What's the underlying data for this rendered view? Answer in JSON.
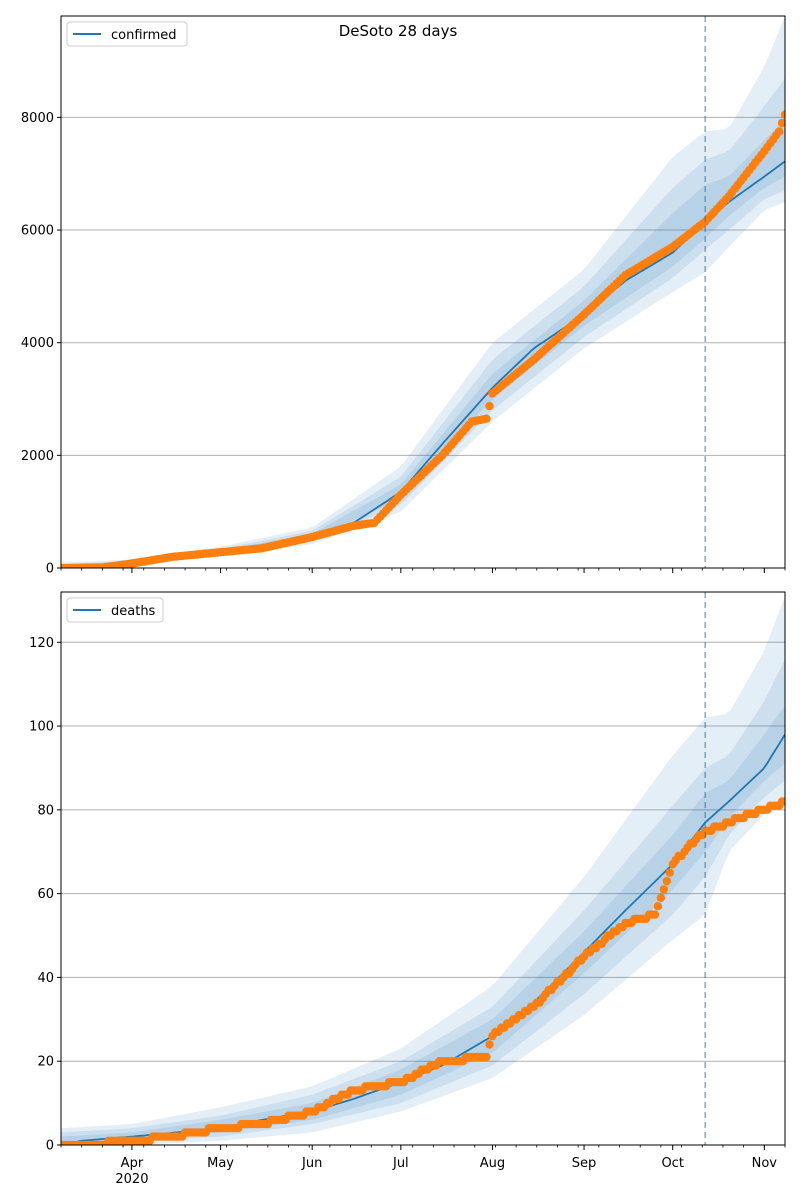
{
  "figure": {
    "title": "DeSoto 28 days"
  },
  "colors": {
    "model_line": "#1f77b4",
    "observed_points": "#ff7f0e",
    "band": "#1f77b4",
    "forecast_start_line": "#1f77b4",
    "grid": "#b0b0b0"
  },
  "chart_data": [
    {
      "type": "line",
      "panel": "top",
      "legend": [
        "confirmed"
      ],
      "legend_position": "upper-left",
      "grid": "y",
      "x_range": [
        "2020-03-08",
        "2020-11-08"
      ],
      "ylim": [
        0,
        9800
      ],
      "yticks": [
        0,
        2000,
        4000,
        6000,
        8000
      ],
      "xtick_labels": [],
      "forecast_start": "2020-10-12",
      "series": [
        {
          "name": "confirmed",
          "kind": "model",
          "points": [
            [
              "2020-03-08",
              0
            ],
            [
              "2020-03-22",
              15
            ],
            [
              "2020-04-01",
              80
            ],
            [
              "2020-04-15",
              190
            ],
            [
              "2020-05-01",
              280
            ],
            [
              "2020-05-15",
              370
            ],
            [
              "2020-06-01",
              560
            ],
            [
              "2020-06-15",
              800
            ],
            [
              "2020-07-01",
              1350
            ],
            [
              "2020-07-15",
              2200
            ],
            [
              "2020-08-01",
              3200
            ],
            [
              "2020-08-15",
              3900
            ],
            [
              "2020-09-01",
              4500
            ],
            [
              "2020-09-15",
              5100
            ],
            [
              "2020-10-01",
              5600
            ],
            [
              "2020-10-12",
              6150
            ],
            [
              "2020-10-20",
              6500
            ],
            [
              "2020-11-01",
              6950
            ],
            [
              "2020-11-08",
              7220
            ]
          ]
        },
        {
          "name": "observed",
          "kind": "points",
          "points": [
            [
              "2020-03-08",
              0
            ],
            [
              "2020-03-22",
              10
            ],
            [
              "2020-04-01",
              80
            ],
            [
              "2020-04-15",
              200
            ],
            [
              "2020-05-01",
              280
            ],
            [
              "2020-05-15",
              350
            ],
            [
              "2020-06-01",
              550
            ],
            [
              "2020-06-15",
              750
            ],
            [
              "2020-06-22",
              800
            ],
            [
              "2020-07-01",
              1300
            ],
            [
              "2020-07-15",
              2000
            ],
            [
              "2020-07-25",
              2600
            ],
            [
              "2020-07-30",
              2650
            ],
            [
              "2020-08-01",
              3100
            ],
            [
              "2020-08-15",
              3700
            ],
            [
              "2020-09-01",
              4500
            ],
            [
              "2020-09-15",
              5200
            ],
            [
              "2020-10-01",
              5700
            ],
            [
              "2020-10-12",
              6150
            ],
            [
              "2020-10-20",
              6600
            ],
            [
              "2020-11-01",
              7400
            ],
            [
              "2020-11-06",
              7750
            ],
            [
              "2020-11-08",
              8050
            ]
          ]
        }
      ],
      "bands": [
        {
          "level": "outer",
          "points": [
            [
              "2020-03-08",
              0,
              100
            ],
            [
              "2020-04-01",
              40,
              150
            ],
            [
              "2020-05-01",
              220,
              380
            ],
            [
              "2020-06-01",
              420,
              720
            ],
            [
              "2020-07-01",
              1000,
              1800
            ],
            [
              "2020-08-01",
              2600,
              4000
            ],
            [
              "2020-09-01",
              3900,
              5300
            ],
            [
              "2020-10-01",
              4900,
              7300
            ],
            [
              "2020-10-12",
              5250,
              7750
            ],
            [
              "2020-10-20",
              5700,
              7800
            ],
            [
              "2020-11-01",
              6350,
              8900
            ],
            [
              "2020-11-08",
              6500,
              9800
            ]
          ]
        },
        {
          "level": "middle",
          "points": [
            [
              "2020-03-08",
              0,
              70
            ],
            [
              "2020-04-01",
              55,
              120
            ],
            [
              "2020-05-01",
              240,
              340
            ],
            [
              "2020-06-01",
              470,
              660
            ],
            [
              "2020-07-01",
              1120,
              1620
            ],
            [
              "2020-08-01",
              2800,
              3700
            ],
            [
              "2020-09-01",
              4100,
              5000
            ],
            [
              "2020-10-01",
              5150,
              6750
            ],
            [
              "2020-10-12",
              5650,
              7250
            ],
            [
              "2020-10-20",
              6000,
              7400
            ],
            [
              "2020-11-01",
              6550,
              8200
            ],
            [
              "2020-11-08",
              6700,
              8700
            ]
          ]
        },
        {
          "level": "inner",
          "points": [
            [
              "2020-03-08",
              0,
              40
            ],
            [
              "2020-04-01",
              65,
              100
            ],
            [
              "2020-05-01",
              255,
              310
            ],
            [
              "2020-06-01",
              510,
              610
            ],
            [
              "2020-07-01",
              1230,
              1480
            ],
            [
              "2020-08-01",
              3000,
              3450
            ],
            [
              "2020-09-01",
              4300,
              4750
            ],
            [
              "2020-10-01",
              5350,
              6300
            ],
            [
              "2020-10-12",
              5850,
              6800
            ],
            [
              "2020-10-20",
              6250,
              6950
            ],
            [
              "2020-11-01",
              6750,
              7600
            ],
            [
              "2020-11-08",
              6950,
              7950
            ]
          ]
        }
      ]
    },
    {
      "type": "line",
      "panel": "bottom",
      "legend": [
        "deaths"
      ],
      "legend_position": "upper-left",
      "grid": "y",
      "x_range": [
        "2020-03-08",
        "2020-11-08"
      ],
      "ylim": [
        0,
        132
      ],
      "yticks": [
        0,
        20,
        40,
        60,
        80,
        100,
        120
      ],
      "xtick_labels": [
        {
          "date": "2020-04-01",
          "label": "Apr",
          "sublabel": "2020"
        },
        {
          "date": "2020-05-01",
          "label": "May"
        },
        {
          "date": "2020-06-01",
          "label": "Jun"
        },
        {
          "date": "2020-07-01",
          "label": "Jul"
        },
        {
          "date": "2020-08-01",
          "label": "Aug"
        },
        {
          "date": "2020-09-01",
          "label": "Sep"
        },
        {
          "date": "2020-10-01",
          "label": "Oct"
        },
        {
          "date": "2020-11-01",
          "label": "Nov"
        }
      ],
      "forecast_start": "2020-10-12",
      "series": [
        {
          "name": "deaths",
          "kind": "model",
          "points": [
            [
              "2020-03-08",
              0
            ],
            [
              "2020-03-15",
              1
            ],
            [
              "2020-04-01",
              2
            ],
            [
              "2020-05-01",
              4
            ],
            [
              "2020-05-15",
              6
            ],
            [
              "2020-06-01",
              8
            ],
            [
              "2020-06-15",
              11
            ],
            [
              "2020-07-01",
              15
            ],
            [
              "2020-07-15",
              19
            ],
            [
              "2020-08-01",
              26
            ],
            [
              "2020-08-15",
              34
            ],
            [
              "2020-09-01",
              46
            ],
            [
              "2020-09-15",
              56
            ],
            [
              "2020-10-01",
              67
            ],
            [
              "2020-10-12",
              77
            ],
            [
              "2020-10-20",
              82
            ],
            [
              "2020-11-01",
              90
            ],
            [
              "2020-11-08",
              98
            ]
          ]
        },
        {
          "name": "observed",
          "kind": "points",
          "points": [
            [
              "2020-03-08",
              0
            ],
            [
              "2020-03-15",
              0
            ],
            [
              "2020-04-01",
              1
            ],
            [
              "2020-04-15",
              2
            ],
            [
              "2020-05-01",
              4
            ],
            [
              "2020-05-15",
              5
            ],
            [
              "2020-06-01",
              8
            ],
            [
              "2020-06-15",
              13
            ],
            [
              "2020-07-01",
              15
            ],
            [
              "2020-07-15",
              20
            ],
            [
              "2020-07-30",
              21
            ],
            [
              "2020-08-01",
              26
            ],
            [
              "2020-08-15",
              33
            ],
            [
              "2020-09-01",
              45
            ],
            [
              "2020-09-15",
              53
            ],
            [
              "2020-09-25",
              55
            ],
            [
              "2020-10-01",
              67
            ],
            [
              "2020-10-10",
              74
            ],
            [
              "2020-10-20",
              77
            ],
            [
              "2020-11-01",
              80
            ],
            [
              "2020-11-08",
              82
            ]
          ]
        }
      ],
      "bands": [
        {
          "level": "outer",
          "points": [
            [
              "2020-03-08",
              0,
              4
            ],
            [
              "2020-04-01",
              0,
              5
            ],
            [
              "2020-05-01",
              1,
              9
            ],
            [
              "2020-06-01",
              3,
              14
            ],
            [
              "2020-07-01",
              8,
              23
            ],
            [
              "2020-08-01",
              16,
              38
            ],
            [
              "2020-09-01",
              31,
              64
            ],
            [
              "2020-10-01",
              49,
              93
            ],
            [
              "2020-10-12",
              55,
              102
            ],
            [
              "2020-10-20",
              70,
              103
            ],
            [
              "2020-11-01",
              79,
              118
            ],
            [
              "2020-11-08",
              82,
              131
            ]
          ]
        },
        {
          "level": "middle",
          "points": [
            [
              "2020-03-08",
              0,
              3
            ],
            [
              "2020-04-01",
              1,
              4
            ],
            [
              "2020-05-01",
              2,
              7
            ],
            [
              "2020-06-01",
              5,
              12
            ],
            [
              "2020-07-01",
              10,
              20
            ],
            [
              "2020-08-01",
              19,
              33
            ],
            [
              "2020-09-01",
              36,
              56
            ],
            [
              "2020-10-01",
              55,
              81
            ],
            [
              "2020-10-12",
              64,
              90
            ],
            [
              "2020-10-20",
              74,
              93
            ],
            [
              "2020-11-01",
              83,
              106
            ],
            [
              "2020-11-08",
              87,
              116
            ]
          ]
        },
        {
          "level": "inner",
          "points": [
            [
              "2020-03-08",
              0,
              2
            ],
            [
              "2020-04-01",
              1,
              3
            ],
            [
              "2020-05-01",
              3,
              6
            ],
            [
              "2020-06-01",
              6,
              10
            ],
            [
              "2020-07-01",
              12,
              18
            ],
            [
              "2020-08-01",
              22,
              30
            ],
            [
              "2020-09-01",
              41,
              51
            ],
            [
              "2020-10-01",
              61,
              74
            ],
            [
              "2020-10-12",
              70,
              84
            ],
            [
              "2020-10-20",
              78,
              87
            ],
            [
              "2020-11-01",
              87,
              98
            ],
            [
              "2020-11-08",
              91,
              105
            ]
          ]
        }
      ]
    }
  ]
}
